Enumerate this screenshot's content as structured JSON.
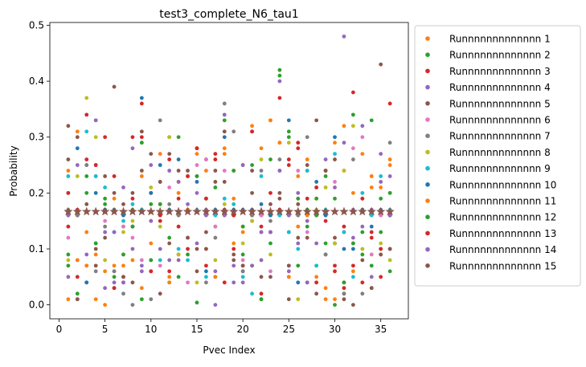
{
  "chart_data": {
    "type": "scatter",
    "title": "test3_complete_N6_tau1",
    "xlabel": "Pvec Index",
    "ylabel": "Probability",
    "xlim": [
      -1,
      38
    ],
    "ylim": [
      -0.025,
      0.505
    ],
    "xticks": [
      0,
      5,
      10,
      15,
      20,
      25,
      30,
      35
    ],
    "yticks": [
      0.0,
      0.1,
      0.2,
      0.3,
      0.4,
      0.5
    ],
    "xtick_labels": [
      "0",
      "5",
      "10",
      "15",
      "20",
      "25",
      "30",
      "35"
    ],
    "ytick_labels": [
      "0.0",
      "0.1",
      "0.2",
      "0.3",
      "0.4",
      "0.5"
    ],
    "grid": false,
    "legend_position": "outside-right",
    "uniform_reference": {
      "value": 0.1667,
      "marker": "star",
      "color": "#8c564b"
    },
    "series": [
      {
        "name": "Runnnnnnnnnnnnn 1",
        "color": "#ff7f0e",
        "values": [
          0.24,
          0.31,
          0.13,
          0.09,
          0.06,
          0.19,
          0.07,
          0.14,
          0.03,
          0.2,
          0.27,
          0.05,
          0.22,
          0.17,
          0.27,
          0.1,
          0.14,
          0.27,
          0.19,
          0.13,
          0.16,
          0.28,
          0.33,
          0.29,
          0.05,
          0.14,
          0.26,
          0.19,
          0.01,
          0.29,
          0.24,
          0.06,
          0.27,
          0.21,
          0.09,
          0.25
        ]
      },
      {
        "name": "Runnnnnnnnnnnnn 2",
        "color": "#2ca02c",
        "values": [
          0.07,
          0.01,
          0.23,
          0.11,
          0.19,
          0.03,
          0.14,
          0.17,
          0.01,
          0.18,
          0.18,
          0.3,
          0.05,
          0.09,
          0.004,
          0.26,
          0.05,
          0.33,
          0.16,
          0.09,
          0.25,
          0.01,
          0.11,
          0.41,
          0.31,
          0.07,
          0.14,
          0.19,
          0.11,
          0.0,
          0.04,
          0.34,
          0.13,
          0.33,
          0.19,
          0.06
        ]
      },
      {
        "name": "Runnnnnnnnnnnnn 3",
        "color": "#d62728",
        "values": [
          0.14,
          0.05,
          0.34,
          0.25,
          0.17,
          0.23,
          0.05,
          0.3,
          0.36,
          0.06,
          0.16,
          0.06,
          0.19,
          0.1,
          0.28,
          0.07,
          0.27,
          0.04,
          0.16,
          0.06,
          0.31,
          0.02,
          0.13,
          0.37,
          0.26,
          0.29,
          0.19,
          0.04,
          0.09,
          0.06,
          0.03,
          0.38,
          0.04,
          0.12,
          0.05,
          0.36
        ]
      },
      {
        "name": "Runnnnnnnnnnnnn 4",
        "color": "#9467bd",
        "values": [
          0.05,
          0.16,
          0.25,
          0.33,
          0.03,
          0.04,
          0.21,
          0.28,
          0.07,
          0.25,
          0.22,
          0.08,
          0.22,
          0.18,
          0.11,
          0.16,
          0.0,
          0.34,
          0.07,
          0.04,
          0.15,
          0.08,
          0.13,
          0.4,
          0.16,
          0.11,
          0.15,
          0.21,
          0.24,
          0.11,
          0.48,
          0.12,
          0.32,
          0.05,
          0.27,
          0.23
        ]
      },
      {
        "name": "Runnnnnnnnnnnnn 5",
        "color": "#8c564b",
        "values": [
          0.32,
          0.3,
          0.04,
          0.1,
          0.23,
          0.39,
          0.05,
          0.2,
          0.31,
          0.2,
          0.02,
          0.27,
          0.09,
          0.24,
          0.06,
          0.13,
          0.22,
          0.31,
          0.08,
          0.25,
          0.2,
          0.16,
          0.05,
          0.19,
          0.01,
          0.12,
          0.25,
          0.02,
          0.24,
          0.26,
          0.02,
          0.11,
          0.17,
          0.03,
          0.43,
          0.1
        ]
      },
      {
        "name": "Runnnnnnnnnnnnn 6",
        "color": "#e377c2",
        "values": [
          0.12,
          0.08,
          0.07,
          0.23,
          0.15,
          0.06,
          0.14,
          0.12,
          0.08,
          0.15,
          0.07,
          0.21,
          0.09,
          0.04,
          0.25,
          0.26,
          0.14,
          0.24,
          0.24,
          0.08,
          0.17,
          0.16,
          0.06,
          0.24,
          0.07,
          0.24,
          0.13,
          0.16,
          0.24,
          0.22,
          0.13,
          0.28,
          0.3,
          0.09,
          0.16,
          0.2
        ]
      },
      {
        "name": "Runnnnnnnnnnnnn 7",
        "color": "#7f7f7f",
        "values": [
          0.17,
          0.16,
          0.25,
          0.06,
          0.14,
          0.06,
          0.02,
          0.0,
          0.17,
          0.01,
          0.33,
          0.18,
          0.16,
          0.17,
          0.23,
          0.04,
          0.12,
          0.36,
          0.31,
          0.06,
          0.16,
          0.24,
          0.15,
          0.26,
          0.13,
          0.16,
          0.3,
          0.07,
          0.09,
          0.11,
          0.02,
          0.26,
          0.02,
          0.17,
          0.1,
          0.29
        ]
      },
      {
        "name": "Runnnnnnnnnnnnn 8",
        "color": "#bcbd22",
        "values": [
          0.08,
          0.23,
          0.37,
          0.3,
          0.08,
          0.17,
          0.13,
          0.15,
          0.29,
          0.21,
          0.14,
          0.3,
          0.09,
          0.17,
          0.04,
          0.19,
          0.08,
          0.18,
          0.17,
          0.11,
          0.15,
          0.26,
          0.09,
          0.17,
          0.29,
          0.01,
          0.24,
          0.17,
          0.21,
          0.11,
          0.24,
          0.32,
          0.1,
          0.23,
          0.11,
          0.08
        ]
      },
      {
        "name": "Runnnnnnnnnnnnn 9",
        "color": "#17becf",
        "values": [
          0.23,
          0.17,
          0.31,
          0.23,
          0.21,
          0.13,
          0.15,
          0.18,
          0.17,
          0.08,
          0.08,
          0.04,
          0.1,
          0.08,
          0.17,
          0.05,
          0.16,
          0.19,
          0.18,
          0.05,
          0.02,
          0.23,
          0.16,
          0.16,
          0.13,
          0.1,
          0.24,
          0.07,
          0.17,
          0.27,
          0.13,
          0.05,
          0.2,
          0.16,
          0.23,
          0.17
        ]
      },
      {
        "name": "Runnnnnnnnnnnnn 10",
        "color": "#1f77b4",
        "values": [
          0.2,
          0.28,
          0.04,
          0.2,
          0.17,
          0.17,
          0.16,
          0.14,
          0.37,
          0.2,
          0.25,
          0.17,
          0.26,
          0.17,
          0.22,
          0.06,
          0.17,
          0.3,
          0.17,
          0.17,
          0.17,
          0.18,
          0.16,
          0.17,
          0.33,
          0.04,
          0.17,
          0.22,
          0.16,
          0.3,
          0.1,
          0.1,
          0.17,
          0.14,
          0.17,
          0.16
        ]
      },
      {
        "name": "Runnnnnnnnnnnnn 11",
        "color": "#ff7f0e",
        "values": [
          0.01,
          0.08,
          0.07,
          0.01,
          0.0,
          0.07,
          0.09,
          0.08,
          0.23,
          0.11,
          0.18,
          0.04,
          0.2,
          0.17,
          0.28,
          0.24,
          0.05,
          0.28,
          0.11,
          0.14,
          0.32,
          0.13,
          0.33,
          0.29,
          0.05,
          0.23,
          0.16,
          0.05,
          0.03,
          0.01,
          0.32,
          0.2,
          0.19,
          0.23,
          0.21,
          0.26
        ]
      },
      {
        "name": "Runnnnnnnnnnnnn 12",
        "color": "#2ca02c",
        "values": [
          0.09,
          0.02,
          0.2,
          0.11,
          0.18,
          0.05,
          0.09,
          0.14,
          0.29,
          0.08,
          0.18,
          0.12,
          0.3,
          0.23,
          0.23,
          0.19,
          0.21,
          0.17,
          0.24,
          0.14,
          0.07,
          0.01,
          0.26,
          0.42,
          0.3,
          0.19,
          0.17,
          0.16,
          0.23,
          0.19,
          0.04,
          0.11,
          0.09,
          0.07,
          0.13,
          0.2
        ]
      },
      {
        "name": "Runnnnnnnnnnnnn 13",
        "color": "#d62728",
        "values": [
          0.2,
          0.17,
          0.26,
          0.25,
          0.3,
          0.03,
          0.04,
          0.19,
          0.3,
          0.06,
          0.15,
          0.26,
          0.14,
          0.23,
          0.28,
          0.19,
          0.26,
          0.17,
          0.1,
          0.07,
          0.31,
          0.14,
          0.2,
          0.17,
          0.25,
          0.28,
          0.04,
          0.21,
          0.15,
          0.07,
          0.14,
          0.07,
          0.19,
          0.13,
          0.1,
          0.16
        ]
      },
      {
        "name": "Runnnnnnnnnnnnn 14",
        "color": "#9467bd",
        "values": [
          0.16,
          0.25,
          0.09,
          0.33,
          0.13,
          0.13,
          0.04,
          0.1,
          0.06,
          0.15,
          0.1,
          0.24,
          0.08,
          0.12,
          0.2,
          0.17,
          0.06,
          0.16,
          0.04,
          0.25,
          0.07,
          0.13,
          0.13,
          0.24,
          0.06,
          0.2,
          0.04,
          0.11,
          0.26,
          0.21,
          0.29,
          0.17,
          0.14,
          0.17,
          0.22,
          0.16
        ]
      },
      {
        "name": "Runnnnnnnnnnnnn 15",
        "color": "#8c564b",
        "values": [
          0.26,
          0.01,
          0.18,
          0.07,
          0.12,
          0.2,
          0.18,
          0.04,
          0.24,
          0.27,
          0.22,
          0.11,
          0.24,
          0.12,
          0.1,
          0.1,
          0.24,
          0.22,
          0.09,
          0.07,
          0.24,
          0.05,
          0.18,
          0.2,
          0.07,
          0.18,
          0.12,
          0.33,
          0.24,
          0.12,
          0.01,
          0.0,
          0.08,
          0.03,
          0.09,
          0.1
        ]
      }
    ]
  }
}
